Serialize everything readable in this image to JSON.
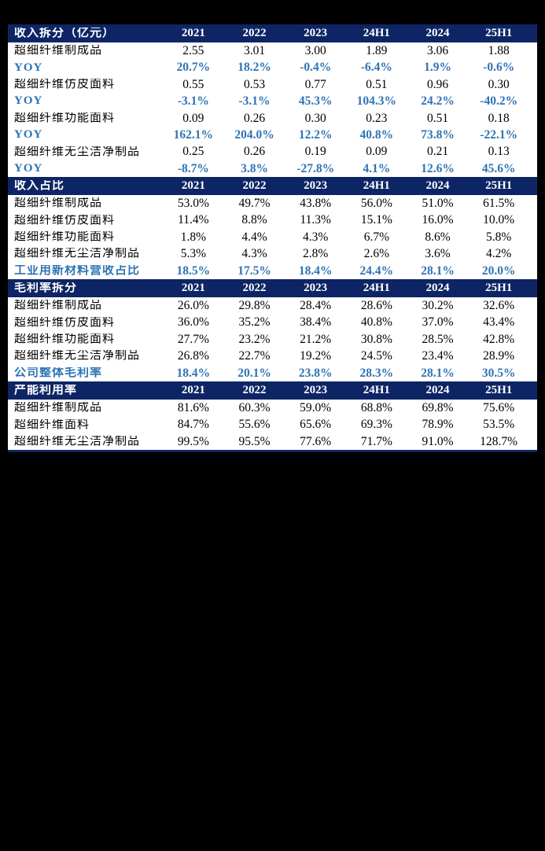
{
  "page": {
    "background_color": "#000000"
  },
  "table_style": {
    "header_bg": "#0e2565",
    "header_text": "#ffffff",
    "accent_blue": "#2e74b5",
    "body_text": "#000000",
    "body_bg": "#ffffff"
  },
  "chart_data": {
    "type": "table",
    "columns": [
      "2021",
      "2022",
      "2023",
      "24H1",
      "2024",
      "25H1"
    ],
    "sections": [
      {
        "title": "收入拆分（亿元）",
        "rows": [
          {
            "label": "超细纤维制成品",
            "highlight": false,
            "values": [
              "2.55",
              "3.01",
              "3.00",
              "1.89",
              "3.06",
              "1.88"
            ]
          },
          {
            "label": "YOY",
            "highlight": true,
            "values": [
              "20.7%",
              "18.2%",
              "-0.4%",
              "-6.4%",
              "1.9%",
              "-0.6%"
            ]
          },
          {
            "label": "超细纤维仿皮面料",
            "highlight": false,
            "values": [
              "0.55",
              "0.53",
              "0.77",
              "0.51",
              "0.96",
              "0.30"
            ]
          },
          {
            "label": "YOY",
            "highlight": true,
            "values": [
              "-3.1%",
              "-3.1%",
              "45.3%",
              "104.3%",
              "24.2%",
              "-40.2%"
            ]
          },
          {
            "label": "超细纤维功能面料",
            "highlight": false,
            "values": [
              "0.09",
              "0.26",
              "0.30",
              "0.23",
              "0.51",
              "0.18"
            ]
          },
          {
            "label": "YOY",
            "highlight": true,
            "values": [
              "162.1%",
              "204.0%",
              "12.2%",
              "40.8%",
              "73.8%",
              "-22.1%"
            ]
          },
          {
            "label": "超细纤维无尘洁净制品",
            "highlight": false,
            "values": [
              "0.25",
              "0.26",
              "0.19",
              "0.09",
              "0.21",
              "0.13"
            ]
          },
          {
            "label": "YOY",
            "highlight": true,
            "values": [
              "-8.7%",
              "3.8%",
              "-27.8%",
              "4.1%",
              "12.6%",
              "45.6%"
            ]
          }
        ]
      },
      {
        "title": "收入占比",
        "rows": [
          {
            "label": "超细纤维制成品",
            "highlight": false,
            "values": [
              "53.0%",
              "49.7%",
              "43.8%",
              "56.0%",
              "51.0%",
              "61.5%"
            ]
          },
          {
            "label": "超细纤维仿皮面料",
            "highlight": false,
            "values": [
              "11.4%",
              "8.8%",
              "11.3%",
              "15.1%",
              "16.0%",
              "10.0%"
            ]
          },
          {
            "label": "超细纤维功能面料",
            "highlight": false,
            "values": [
              "1.8%",
              "4.4%",
              "4.3%",
              "6.7%",
              "8.6%",
              "5.8%"
            ]
          },
          {
            "label": "超细纤维无尘洁净制品",
            "highlight": false,
            "values": [
              "5.3%",
              "4.3%",
              "2.8%",
              "2.6%",
              "3.6%",
              "4.2%"
            ]
          },
          {
            "label": "工业用新材料营收占比",
            "highlight": true,
            "values": [
              "18.5%",
              "17.5%",
              "18.4%",
              "24.4%",
              "28.1%",
              "20.0%"
            ]
          }
        ]
      },
      {
        "title": "毛利率拆分",
        "rows": [
          {
            "label": "超细纤维制成品",
            "highlight": false,
            "values": [
              "26.0%",
              "29.8%",
              "28.4%",
              "28.6%",
              "30.2%",
              "32.6%"
            ]
          },
          {
            "label": "超细纤维仿皮面料",
            "highlight": false,
            "values": [
              "36.0%",
              "35.2%",
              "38.4%",
              "40.8%",
              "37.0%",
              "43.4%"
            ]
          },
          {
            "label": "超细纤维功能面料",
            "highlight": false,
            "values": [
              "27.7%",
              "23.2%",
              "21.2%",
              "30.8%",
              "28.5%",
              "42.8%"
            ]
          },
          {
            "label": "超细纤维无尘洁净制品",
            "highlight": false,
            "values": [
              "26.8%",
              "22.7%",
              "19.2%",
              "24.5%",
              "23.4%",
              "28.9%"
            ]
          },
          {
            "label": "公司整体毛利率",
            "highlight": true,
            "values": [
              "18.4%",
              "20.1%",
              "23.8%",
              "28.3%",
              "28.1%",
              "30.5%"
            ]
          }
        ]
      },
      {
        "title": "产能利用率",
        "rows": [
          {
            "label": "超细纤维制成品",
            "highlight": false,
            "values": [
              "81.6%",
              "60.3%",
              "59.0%",
              "68.8%",
              "69.8%",
              "75.6%"
            ]
          },
          {
            "label": "超细纤维面料",
            "highlight": false,
            "values": [
              "84.7%",
              "55.6%",
              "65.6%",
              "69.3%",
              "78.9%",
              "53.5%"
            ]
          },
          {
            "label": "超细纤维无尘洁净制品",
            "highlight": false,
            "values": [
              "99.5%",
              "95.5%",
              "77.6%",
              "71.7%",
              "91.0%",
              "128.7%"
            ]
          }
        ]
      }
    ]
  }
}
